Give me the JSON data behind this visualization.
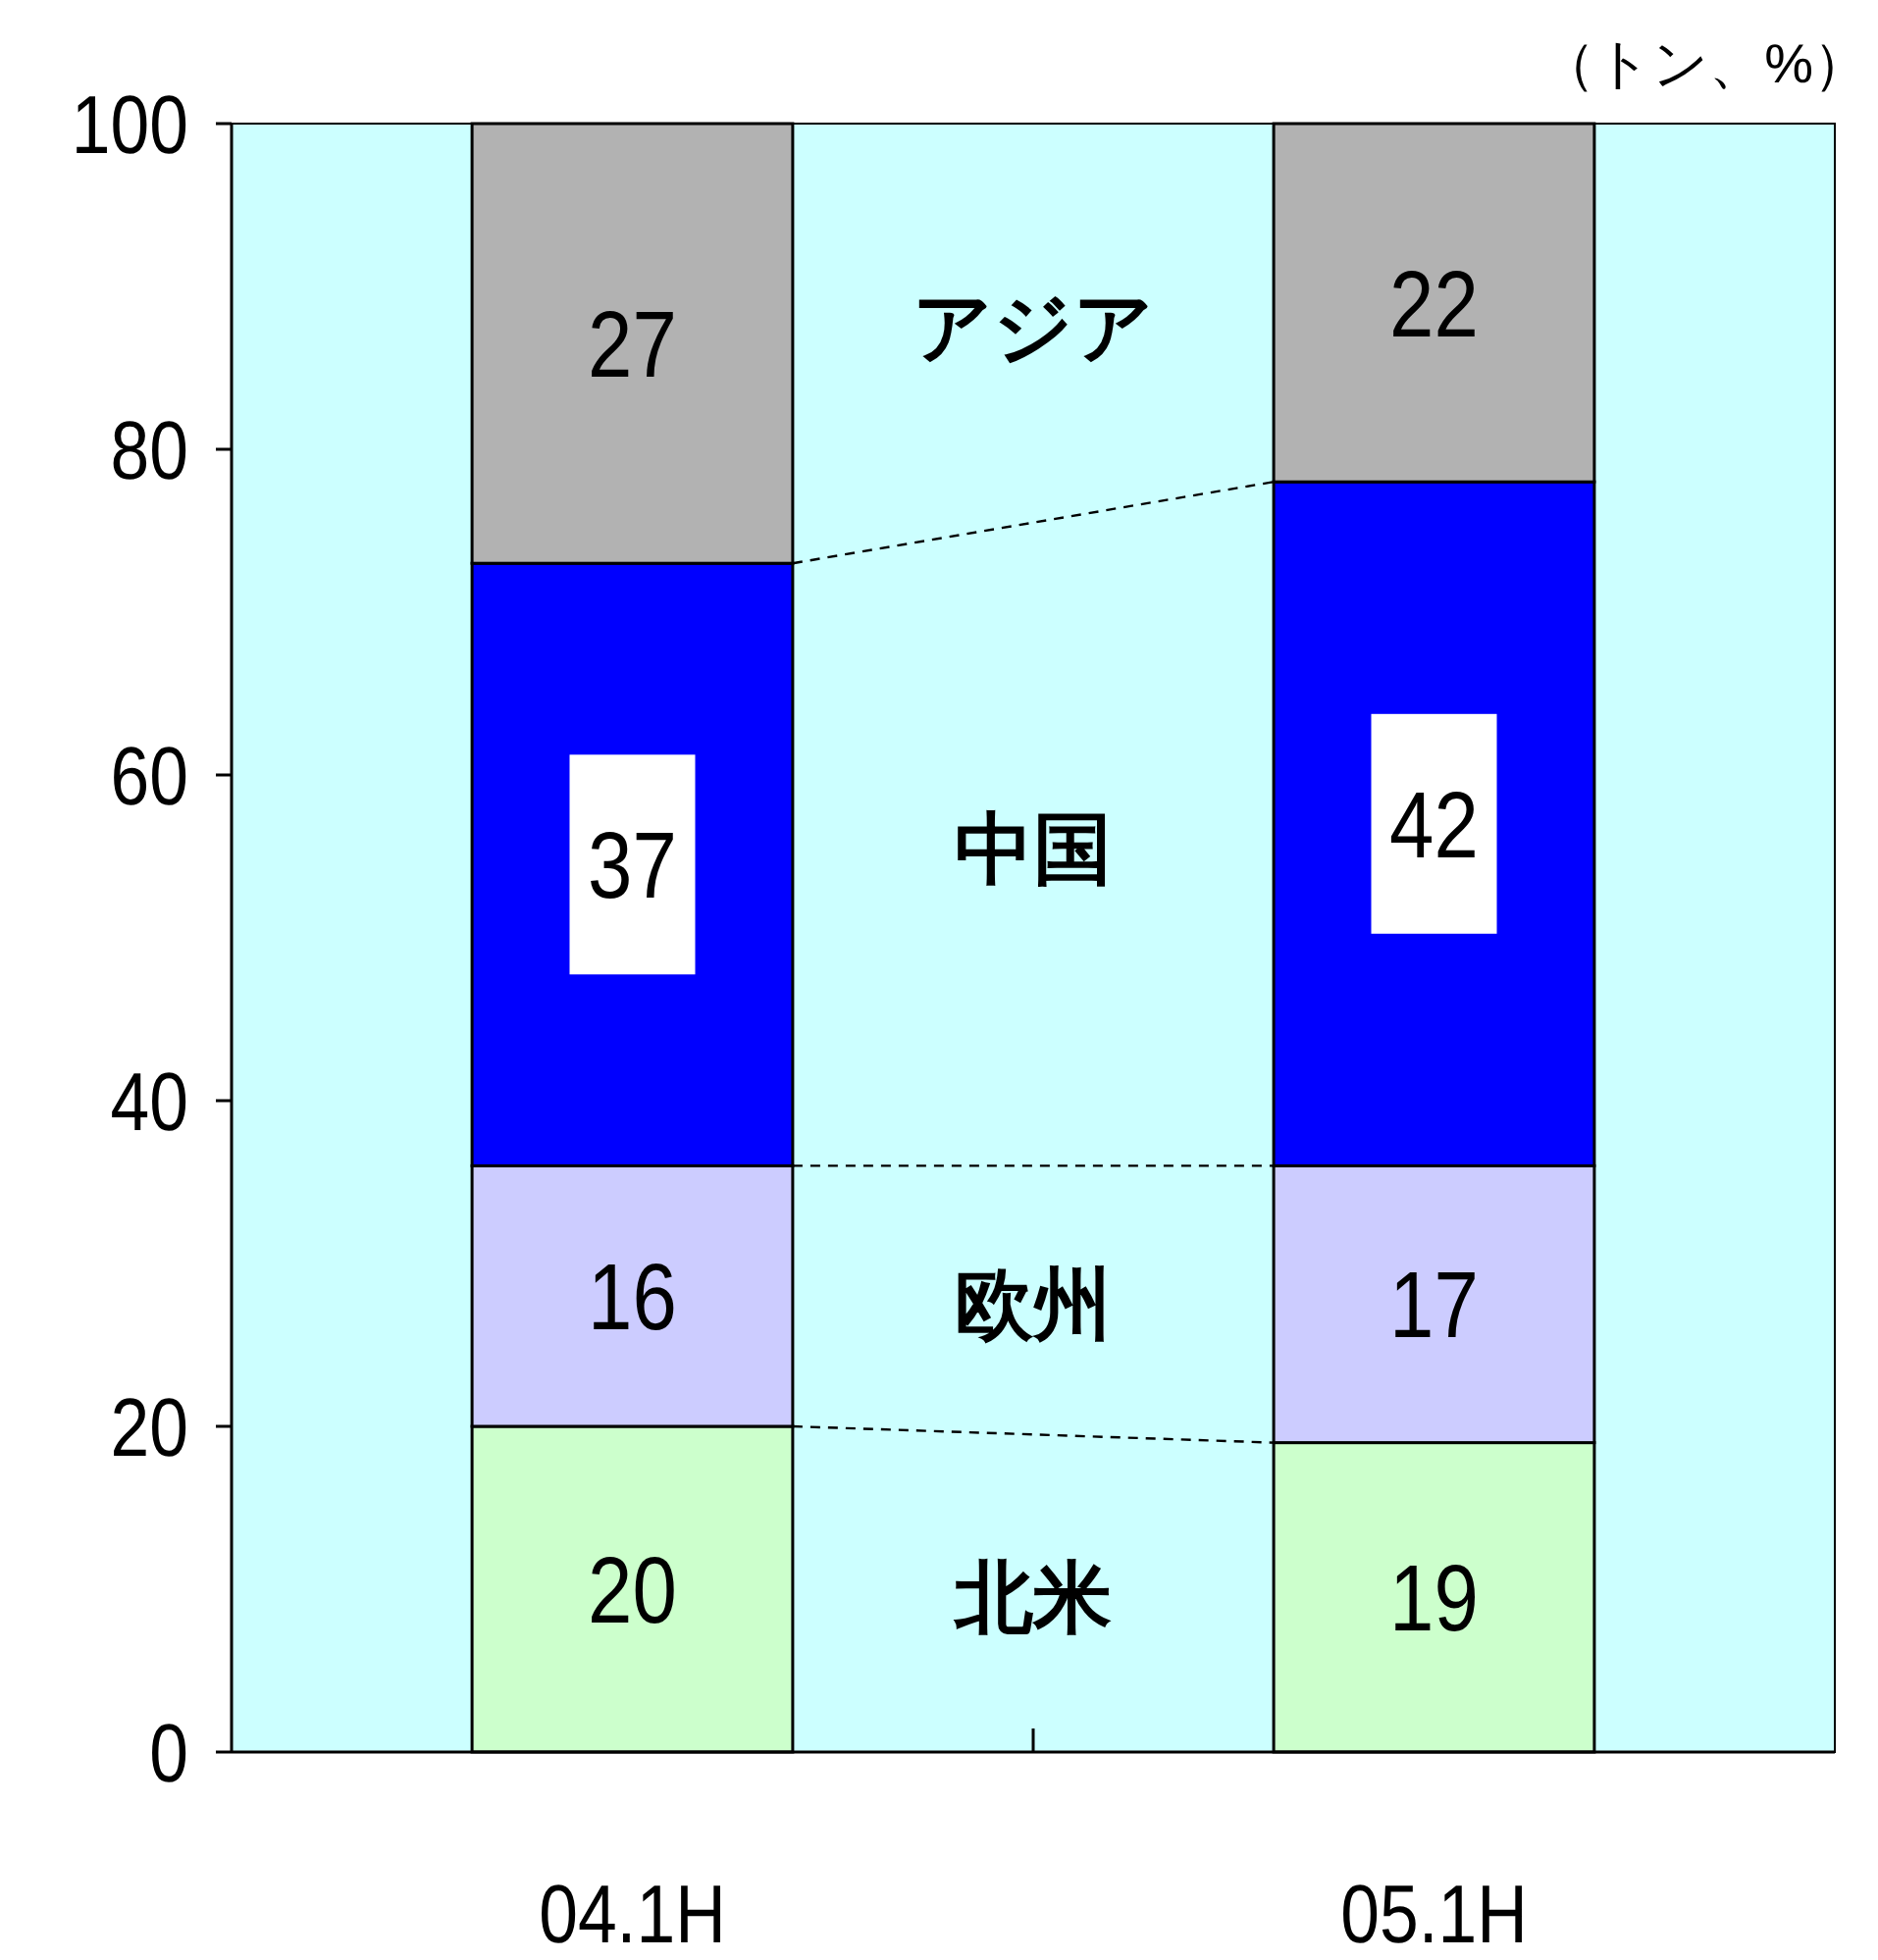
{
  "chart_data": {
    "type": "bar",
    "stacked": true,
    "data_labels": true,
    "legend": false,
    "annotations": [
      "（トン、%）"
    ],
    "categories": [
      "04.1H",
      "05.1H"
    ],
    "ylim": [
      0,
      100
    ],
    "yticks": [
      0,
      20,
      40,
      60,
      80,
      100
    ],
    "series": [
      {
        "name": "北米",
        "color": "#ccffcc",
        "values": [
          20,
          19
        ]
      },
      {
        "name": "欧州",
        "color": "#ccccff",
        "values": [
          16,
          17
        ]
      },
      {
        "name": "中国",
        "color": "#0000ff",
        "values": [
          37,
          42
        ]
      },
      {
        "name": "アジア",
        "color": "#b2b2b2",
        "values": [
          27,
          22
        ]
      }
    ]
  }
}
